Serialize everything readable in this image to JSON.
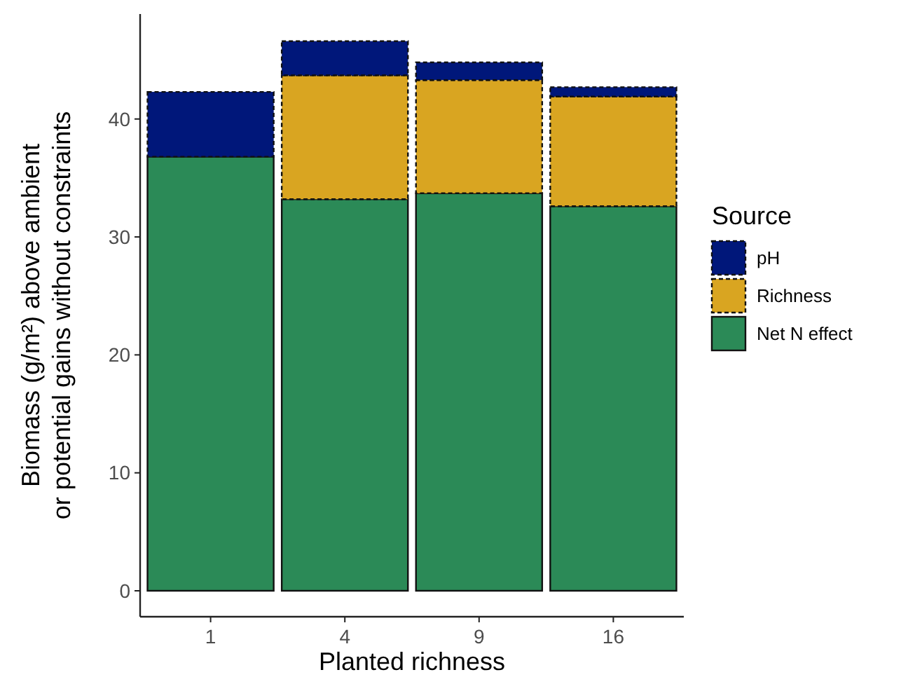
{
  "chart_data": {
    "type": "bar",
    "stacked": true,
    "xlabel": "Planted richness",
    "ylabel": "Biomass (g/m²) above ambient\nor potential gains without constraints",
    "legend_title": "Source",
    "legend": "right",
    "grid": false,
    "categories": [
      "1",
      "4",
      "9",
      "16"
    ],
    "series": [
      {
        "name": "Net N effect",
        "color": "#2b8a57",
        "line_style": "solid",
        "values": [
          36.8,
          33.2,
          33.7,
          32.6
        ]
      },
      {
        "name": "Richness",
        "color": "#d9a521",
        "line_style": "dashed",
        "values": [
          0,
          10.5,
          9.6,
          9.3
        ]
      },
      {
        "name": "pH",
        "color": "#00177a",
        "line_style": "dashed",
        "values": [
          5.5,
          2.9,
          1.5,
          0.8
        ]
      }
    ],
    "ylim": [
      -2.2,
      48.9
    ],
    "yticks": [
      0,
      10,
      20,
      30,
      40
    ]
  }
}
